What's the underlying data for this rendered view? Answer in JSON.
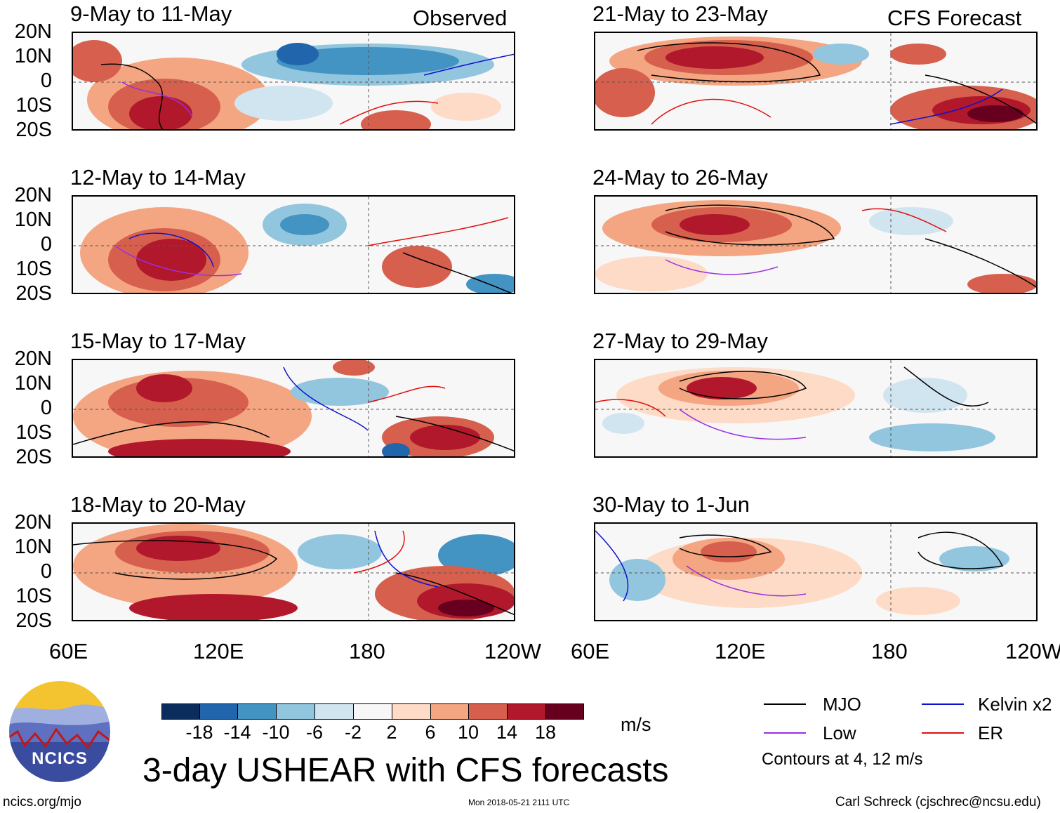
{
  "header": {
    "left_label": "Observed",
    "right_label": "CFS Forecast"
  },
  "panels": {
    "observed": [
      {
        "title": "9-May to 11-May"
      },
      {
        "title": "12-May to 14-May"
      },
      {
        "title": "15-May to 17-May"
      },
      {
        "title": "18-May to 20-May"
      }
    ],
    "forecast": [
      {
        "title": "21-May to 23-May"
      },
      {
        "title": "24-May to 26-May"
      },
      {
        "title": "27-May to 29-May"
      },
      {
        "title": "30-May to 1-Jun"
      }
    ]
  },
  "axes": {
    "lat_labels": [
      "20N",
      "10N",
      "0",
      "10S",
      "20S"
    ],
    "lon_labels": [
      "60E",
      "120E",
      "180",
      "120W"
    ]
  },
  "colorbar": {
    "colors": [
      "#0b2d5e",
      "#2166ac",
      "#4393c3",
      "#92c5de",
      "#d1e5f0",
      "#f7f7f7",
      "#fddbc7",
      "#f4a582",
      "#d6604d",
      "#b2182b",
      "#67001f"
    ],
    "ticks": [
      "-18",
      "-14",
      "-10",
      "-6",
      "-2",
      "2",
      "6",
      "10",
      "14",
      "18"
    ],
    "units": "m/s"
  },
  "title": "3-day USHEAR with CFS forecasts",
  "legend": {
    "items": [
      {
        "label": "MJO",
        "color": "#000000"
      },
      {
        "label": "Kelvin x2",
        "color": "#1010d0"
      },
      {
        "label": "Low",
        "color": "#9a30e0"
      },
      {
        "label": "ER",
        "color": "#e01010"
      }
    ],
    "note": "Contours at 4, 12 m/s"
  },
  "logo": {
    "text": "NCICS"
  },
  "footer": {
    "url": "ncics.org/mjo",
    "timestamp": "Mon 2018-05-21 2111 UTC",
    "credit": "Carl Schreck (cjschrec@ncsu.edu)"
  }
}
